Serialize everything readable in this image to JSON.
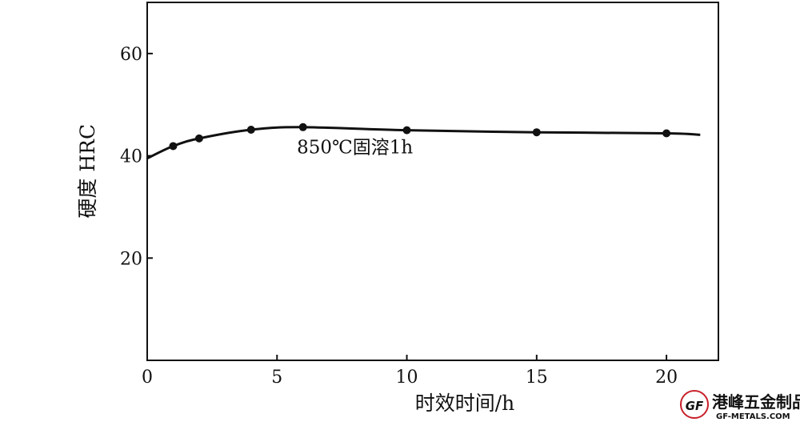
{
  "chart_data": {
    "type": "line",
    "title": "",
    "xlabel": "时效时间/h",
    "ylabel": "硬度 HRC",
    "xlim": [
      0,
      22
    ],
    "ylim": [
      0,
      70
    ],
    "xticks": [
      0,
      5,
      10,
      15,
      20
    ],
    "yticks": [
      20,
      40,
      60
    ],
    "grid": false,
    "series": [
      {
        "name": "",
        "x": [
          0,
          1,
          2,
          4,
          6,
          10,
          15,
          20,
          21.3
        ],
        "y": [
          39.5,
          41.9,
          43.4,
          45.1,
          45.6,
          45.0,
          44.6,
          44.4,
          44.1
        ],
        "markers": [
          1,
          2,
          4,
          6,
          10,
          15,
          20
        ],
        "color": "#111111"
      }
    ],
    "annotations": [
      {
        "text": "850℃固溶1h",
        "x": 8,
        "y": 40.5
      }
    ]
  },
  "watermark": {
    "text_cn": "港峰五金制品",
    "text_en": "GF-METALS.COM",
    "logo_text": "GF",
    "color": "#c8202a"
  }
}
